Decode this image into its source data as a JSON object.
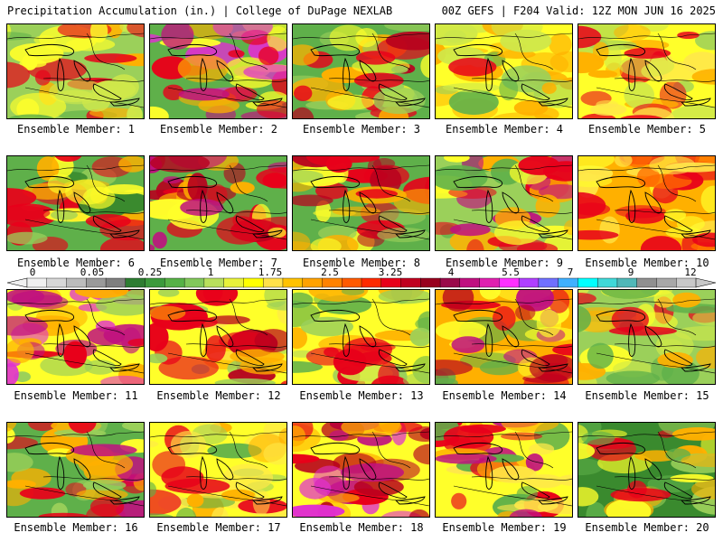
{
  "header": {
    "title": "Precipitation Accumulation (in.) | College of DuPage NEXLAB",
    "run_info": "00Z GEFS | F204 Valid: 12Z MON JUN 16 2025"
  },
  "panels": [
    {
      "label": "Ensemble Member: 1"
    },
    {
      "label": "Ensemble Member: 2"
    },
    {
      "label": "Ensemble Member: 3"
    },
    {
      "label": "Ensemble Member: 4"
    },
    {
      "label": "Ensemble Member: 5"
    },
    {
      "label": "Ensemble Member: 6"
    },
    {
      "label": "Ensemble Member: 7"
    },
    {
      "label": "Ensemble Member: 8"
    },
    {
      "label": "Ensemble Member: 9"
    },
    {
      "label": "Ensemble Member: 10"
    },
    {
      "label": "Ensemble Member: 11"
    },
    {
      "label": "Ensemble Member: 12"
    },
    {
      "label": "Ensemble Member: 13"
    },
    {
      "label": "Ensemble Member: 14"
    },
    {
      "label": "Ensemble Member: 15"
    },
    {
      "label": "Ensemble Member: 16"
    },
    {
      "label": "Ensemble Member: 17"
    },
    {
      "label": "Ensemble Member: 18"
    },
    {
      "label": "Ensemble Member: 19"
    },
    {
      "label": "Ensemble Member: 20"
    }
  ],
  "legend": {
    "labels": [
      "0",
      "0.05",
      "0.25",
      "1",
      "1.75",
      "2.5",
      "3.25",
      "4",
      "5.5",
      "7",
      "9",
      "12"
    ],
    "colors": [
      "#f0f0f0",
      "#d7d7d7",
      "#bcbcbc",
      "#9a9a9a",
      "#7f7f7f",
      "#2e7d32",
      "#3c9a3c",
      "#57b246",
      "#82c85a",
      "#b9e05c",
      "#e8f23a",
      "#ffff00",
      "#ffe14a",
      "#ffc200",
      "#ffa200",
      "#ff8200",
      "#ff5a00",
      "#ff2a00",
      "#e8001a",
      "#c00020",
      "#98001e",
      "#9a0a4a",
      "#c01080",
      "#e020b0",
      "#ff30ff",
      "#b040ff",
      "#7070ff",
      "#40b0ff",
      "#00ffff",
      "#40d8d8",
      "#50b8b8",
      "#909090",
      "#a8a8a8",
      "#c8c8c8"
    ]
  }
}
